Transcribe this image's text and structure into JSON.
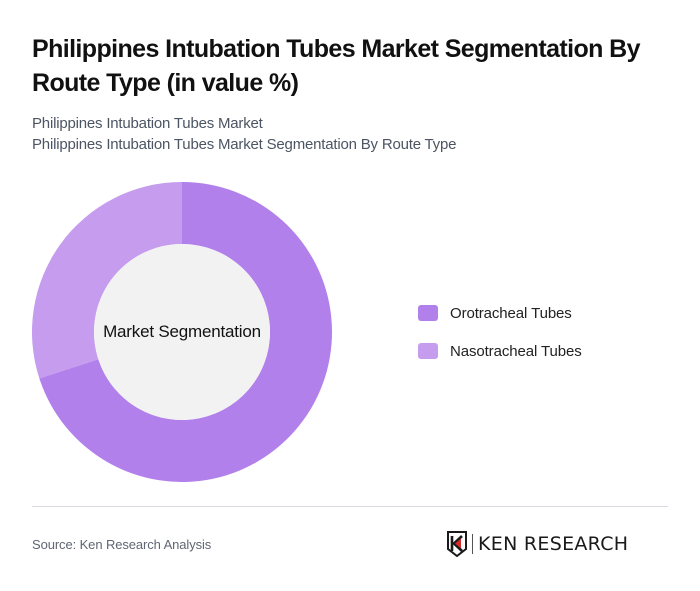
{
  "header": {
    "title": "Philippines Intubation Tubes Market Segmentation By Route Type (in value %)",
    "subtitle_line1": "Philippines Intubation Tubes Market",
    "subtitle_line2": "Philippines Intubation Tubes Market Segmentation By Route Type"
  },
  "chart": {
    "center_label": "Market Segmentation"
  },
  "legend": {
    "items": [
      {
        "label": "Orotracheal Tubes",
        "color": "#b180ea"
      },
      {
        "label": "Nasotracheal Tubes",
        "color": "#c59cee"
      }
    ]
  },
  "footer": {
    "source": "Source: Ken Research Analysis",
    "logo_text": "KEN RESEARCH"
  },
  "chart_data": {
    "type": "pie",
    "variant": "donut",
    "title": "Philippines Intubation Tubes Market Segmentation By Route Type (in value %)",
    "subtitle": "Philippines Intubation Tubes Market / Philippines Intubation Tubes Market Segmentation By Route Type",
    "center_label": "Market Segmentation",
    "categories": [
      "Orotracheal Tubes",
      "Nasotracheal Tubes"
    ],
    "values": [
      70,
      30
    ],
    "colors": [
      "#b180ea",
      "#c59cee"
    ],
    "unit": "%",
    "legend_position": "right",
    "start_angle": "12 o'clock, clockwise"
  }
}
